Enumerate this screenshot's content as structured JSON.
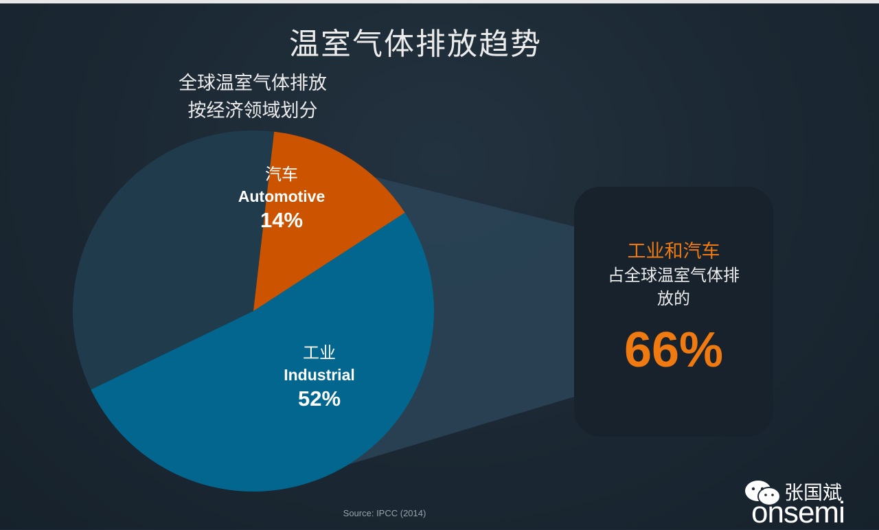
{
  "title": "温室气体排放趋势",
  "subtitle_line1": "全球温室气体排放",
  "subtitle_line2": "按经济领域划分",
  "chart_data": {
    "type": "pie",
    "slices": [
      {
        "label_cn": "工业",
        "label_en": "Industrial",
        "value": 52,
        "value_label": "52%",
        "color": "#02668f"
      },
      {
        "label_cn": "",
        "label_en": "",
        "value": 34,
        "value_label": "",
        "color": "#203b4c"
      },
      {
        "label_cn": "汽车",
        "label_en": "Automotive",
        "value": 14,
        "value_label": "14%",
        "color": "#cc5400"
      }
    ]
  },
  "callout": {
    "highlight": "工业和汽车",
    "text_line1": "占全球温室气体排",
    "text_line2": "放的",
    "value": "66%"
  },
  "source": "Source: IPCC (2014)",
  "watermark": {
    "name": "张国斌",
    "logo_text": "onsemi"
  },
  "colors": {
    "accent": "#f07a12",
    "background": "#1c2a36"
  }
}
